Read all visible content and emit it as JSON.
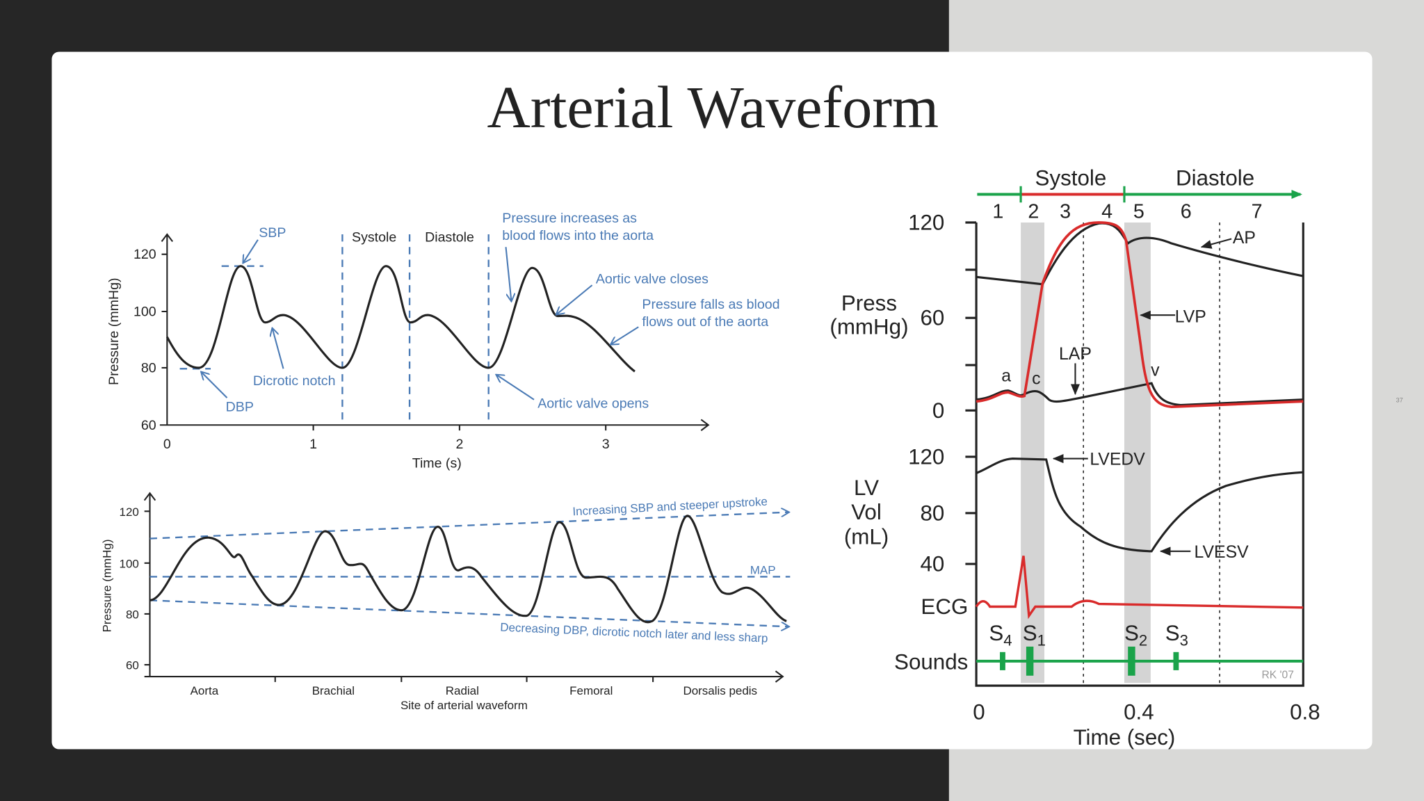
{
  "title": "Arterial Waveform",
  "slide_number": "37",
  "upper_left_figure": {
    "y_axis_label": "Pressure (mmHg)",
    "x_axis_label": "Time (s)",
    "y_tick_labels": [
      60,
      80,
      100,
      120
    ],
    "x_tick_labels": [
      0,
      1,
      2,
      3
    ],
    "phases": [
      "Systole",
      "Diastole"
    ],
    "annotations": {
      "sbp": "SBP",
      "dbp": "DBP",
      "dicrotic_notch": "Dicrotic notch",
      "pressure_increases": [
        "Pressure increases as",
        "blood flows into the aorta"
      ],
      "aortic_valve_closes": "Aortic valve closes",
      "pressure_falls": [
        "Pressure falls as blood",
        "flows out of the aorta"
      ],
      "aortic_valve_opens": "Aortic valve opens"
    }
  },
  "lower_left_figure": {
    "y_axis_label": "Pressure (mmHg)",
    "x_axis_label": "Site of arterial waveform",
    "y_tick_labels": [
      60,
      80,
      100,
      120
    ],
    "sites": [
      "Aorta",
      "Brachial",
      "Radial",
      "Femoral",
      "Dorsalis pedis"
    ],
    "annotations": {
      "upper": "Increasing SBP and steeper upstroke",
      "map": "MAP",
      "lower": "Decreasing DBP, dicrotic notch later and less sharp"
    }
  },
  "right_figure": {
    "phases": [
      "Systole",
      "Diastole"
    ],
    "phase_numbers": [
      1,
      2,
      3,
      4,
      5,
      6,
      7
    ],
    "pressure_label": [
      "Press",
      "(mmHg)"
    ],
    "pressure_tick_labels": [
      120,
      60,
      0
    ],
    "volume_label": [
      "LV",
      "Vol",
      "(mL)"
    ],
    "volume_tick_labels": [
      120,
      80,
      40
    ],
    "ecg_label": "ECG",
    "sounds_label": "Sounds",
    "curve_labels": {
      "ap": "AP",
      "lvp": "LVP",
      "lap": "LAP",
      "a": "a",
      "c": "c",
      "v": "v",
      "lvedv": "LVEDV",
      "lvesv": "LVESV"
    },
    "heart_sounds": [
      [
        "S",
        "4"
      ],
      [
        "S",
        "1"
      ],
      [
        "S",
        "2"
      ],
      [
        "S",
        "3"
      ]
    ],
    "credit": "RK '07",
    "x_tick_labels": [
      0,
      0.4,
      0.8
    ],
    "x_axis_label": "Time (sec)"
  }
}
